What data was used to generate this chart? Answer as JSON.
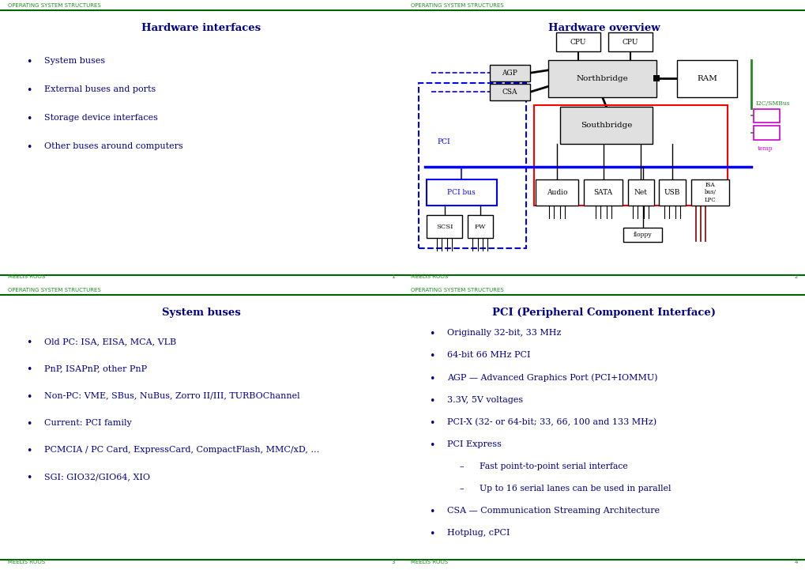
{
  "bg_color": "#ffffff",
  "dark_green": "#006400",
  "medium_green": "#228B22",
  "blue": "#00008B",
  "red": "#cc0000",
  "magenta": "#cc00cc",
  "dark_red": "#880000",
  "footer_author": "Meelis Roos",
  "header_text": "Operating System Structures",
  "panels": [
    {
      "title": "Hardware interfaces",
      "page": "1",
      "bullets": [
        "System buses",
        "External buses and ports",
        "Storage device interfaces",
        "Other buses around computers"
      ],
      "sub_bullets": []
    },
    {
      "title": "Hardware overview",
      "page": "2",
      "bullets": [],
      "sub_bullets": []
    },
    {
      "title": "System buses",
      "page": "3",
      "bullets": [
        "Old PC: ISA, EISA, MCA, VLB",
        "PnP, ISAPnP, other PnP",
        "Non-PC: VME, SBus, NuBus, Zorro II/III, TURBOChannel",
        "Current: PCI family",
        "PCMCIA / PC Card, ExpressCard, CompactFlash, MMC/xD, …",
        "SGI: GIO32/GIO64, XIO"
      ],
      "sub_bullets": []
    },
    {
      "title": "PCI (Peripheral Component Interface)",
      "page": "4",
      "bullets": [
        "Originally 32-bit, 33 MHz",
        "64-bit 66 MHz PCI",
        "AGP — Advanced Graphics Port (PCI+IOMMU)",
        "3.3V, 5V voltages",
        "PCI-X (32- or 64-bit; 33, 66, 100 and 133 MHz)",
        "PCI Express",
        "Fast point-to-point serial interface",
        "Up to 16 serial lanes can be used in parallel",
        "CSA — Communication Streaming Architecture",
        "Hotplug, cPCI"
      ],
      "sub_bullets": [
        6,
        7
      ]
    }
  ]
}
